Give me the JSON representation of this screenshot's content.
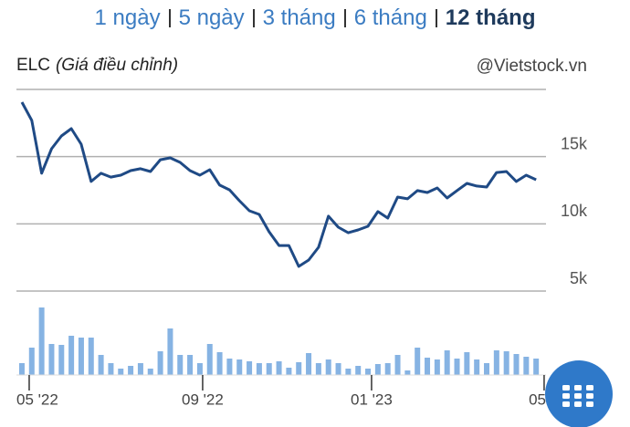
{
  "tabs": [
    "1 ngày",
    "5 ngày",
    "3 tháng",
    "6 tháng",
    "12 tháng"
  ],
  "active_tab": 4,
  "header": {
    "symbol": "ELC",
    "subtitle": "(Giá điều chỉnh)",
    "source": "@Vietstock.vn"
  },
  "chart_data": [
    {
      "type": "line",
      "color": "#1f4a85",
      "grid": true,
      "values": [
        19050,
        17690,
        13760,
        15590,
        16540,
        17080,
        15930,
        13150,
        13760,
        13480,
        13620,
        13960,
        14100,
        13890,
        14770,
        14910,
        14570,
        13960,
        13620,
        14030,
        12880,
        12530,
        11720,
        10970,
        10700,
        9410,
        8390,
        8390,
        6830,
        7310,
        8260,
        10570,
        9750,
        9340,
        9550,
        9820,
        10910,
        10430,
        11990,
        11860,
        12470,
        12330,
        12670,
        11920,
        12470,
        13010,
        12810,
        12740,
        13820,
        13890,
        13150,
        13620,
        13280
      ],
      "xlim": [
        -0.55,
        53
      ],
      "ylim": [
        5000,
        20000
      ],
      "yticks": [
        {
          "value": 5000,
          "label": "5k"
        },
        {
          "value": 10000,
          "label": "10k"
        },
        {
          "value": 15000,
          "label": "15k"
        }
      ]
    },
    {
      "type": "bar",
      "color": "#86b3e3",
      "values": [
        13,
        30,
        74,
        34,
        33,
        43,
        41,
        41,
        22,
        13,
        7,
        10,
        13,
        7,
        26,
        51,
        22,
        22,
        13,
        34,
        25,
        18,
        17,
        15,
        13,
        13,
        15,
        8,
        14,
        24,
        13,
        17,
        13,
        7,
        10,
        7,
        12,
        13,
        22,
        5,
        30,
        19,
        17,
        27,
        18,
        25,
        17,
        13,
        27,
        26,
        23,
        20,
        18
      ],
      "xlim": [
        -0.55,
        53
      ],
      "ylim": [
        0,
        80
      ],
      "xticks": [
        {
          "value": 0.74,
          "label": "05 '22"
        },
        {
          "value": 18.28,
          "label": "09 '22"
        },
        {
          "value": 35.36,
          "label": "01 '23"
        },
        {
          "value": 52.81,
          "label": "05"
        }
      ]
    }
  ]
}
